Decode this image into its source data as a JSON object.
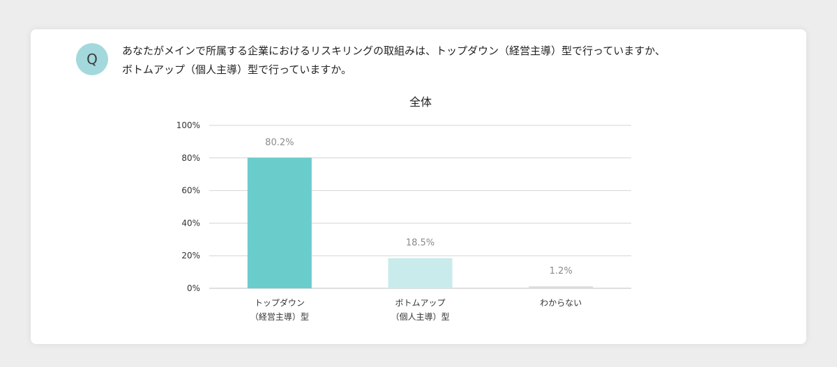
{
  "badge": "Q",
  "question": {
    "line1": "あなたがメインで所属する企業におけるリスキリングの取組みは、トップダウン（経営主導）型で行っていますか、",
    "line2": "ボトムアップ（個人主導）型で行っていますか。"
  },
  "chart_data": {
    "type": "bar",
    "title": "全体",
    "categories": [
      [
        "トップダウン",
        "（経営主導）型"
      ],
      [
        "ボトムアップ",
        "（個人主導）型"
      ],
      [
        "わからない"
      ]
    ],
    "values": [
      80.2,
      18.5,
      1.2
    ],
    "value_labels": [
      "80.2%",
      "18.5%",
      "1.2%"
    ],
    "bar_colors": [
      "#6acdcc",
      "#c9ebeb",
      "#dcdcdc"
    ],
    "ylim": [
      0,
      100
    ],
    "yticks": [
      0,
      20,
      40,
      60,
      80,
      100
    ],
    "ytick_labels": [
      "0%",
      "20%",
      "40%",
      "60%",
      "80%",
      "100%"
    ],
    "grid": true,
    "xlabel": "",
    "ylabel": ""
  }
}
